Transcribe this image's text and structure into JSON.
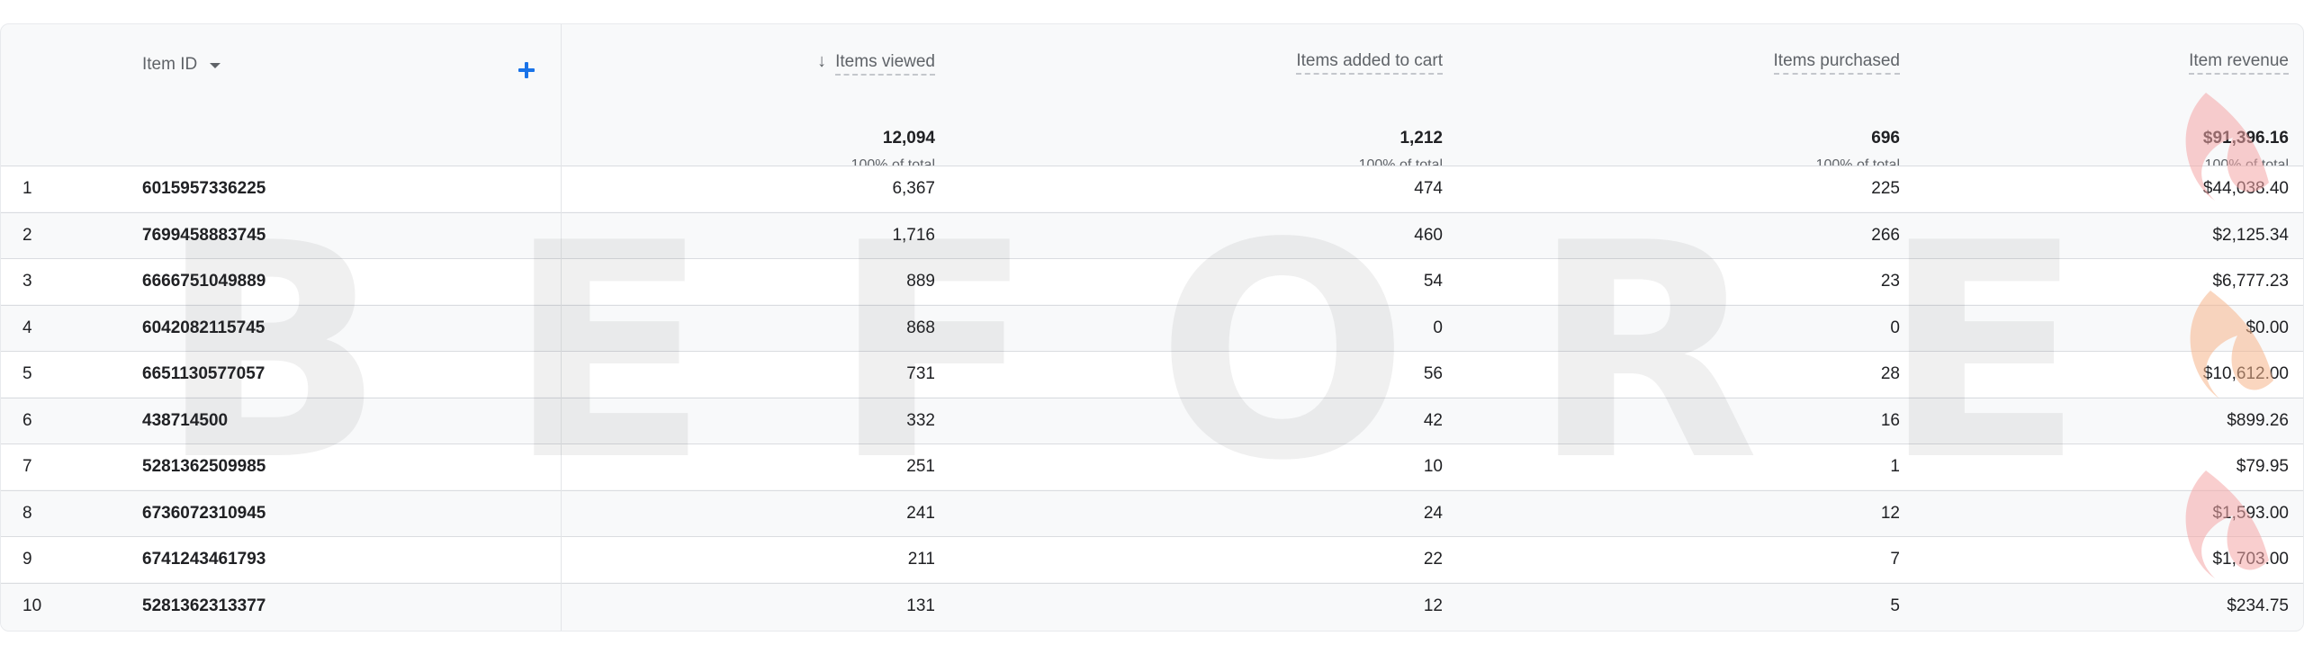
{
  "table": {
    "dimension_header": "Item ID",
    "columns": [
      {
        "label": "Items viewed",
        "total": "12,094",
        "pct": "100% of total",
        "sorted": true
      },
      {
        "label": "Items added to cart",
        "total": "1,212",
        "pct": "100% of total"
      },
      {
        "label": "Items purchased",
        "total": "696",
        "pct": "100% of total"
      },
      {
        "label": "Item revenue",
        "total": "$91,396.16",
        "pct": "100% of total"
      }
    ],
    "rows": [
      {
        "rank": "1",
        "id": "6015957336225",
        "viewed": "6,367",
        "cart": "474",
        "purchased": "225",
        "revenue": "$44,038.40"
      },
      {
        "rank": "2",
        "id": "7699458883745",
        "viewed": "1,716",
        "cart": "460",
        "purchased": "266",
        "revenue": "$2,125.34"
      },
      {
        "rank": "3",
        "id": "6666751049889",
        "viewed": "889",
        "cart": "54",
        "purchased": "23",
        "revenue": "$6,777.23"
      },
      {
        "rank": "4",
        "id": "6042082115745",
        "viewed": "868",
        "cart": "0",
        "purchased": "0",
        "revenue": "$0.00"
      },
      {
        "rank": "5",
        "id": "6651130577057",
        "viewed": "731",
        "cart": "56",
        "purchased": "28",
        "revenue": "$10,612.00"
      },
      {
        "rank": "6",
        "id": "438714500",
        "viewed": "332",
        "cart": "42",
        "purchased": "16",
        "revenue": "$899.26"
      },
      {
        "rank": "7",
        "id": "5281362509985",
        "viewed": "251",
        "cart": "10",
        "purchased": "1",
        "revenue": "$79.95"
      },
      {
        "rank": "8",
        "id": "6736072310945",
        "viewed": "241",
        "cart": "24",
        "purchased": "12",
        "revenue": "$1,593.00"
      },
      {
        "rank": "9",
        "id": "6741243461793",
        "viewed": "211",
        "cart": "22",
        "purchased": "7",
        "revenue": "$1,703.00"
      },
      {
        "rank": "10",
        "id": "5281362313377",
        "viewed": "131",
        "cart": "12",
        "purchased": "5",
        "revenue": "$234.75"
      }
    ]
  },
  "watermark": {
    "letters": [
      "B",
      "E",
      "F",
      "O",
      "R",
      "E"
    ]
  },
  "icons": {
    "sort": "arrow-down-icon",
    "add": "plus-icon",
    "dropdown": "caret-down-icon"
  },
  "colors": {
    "accent": "#1a73e8",
    "background": "#f8f9fa"
  }
}
